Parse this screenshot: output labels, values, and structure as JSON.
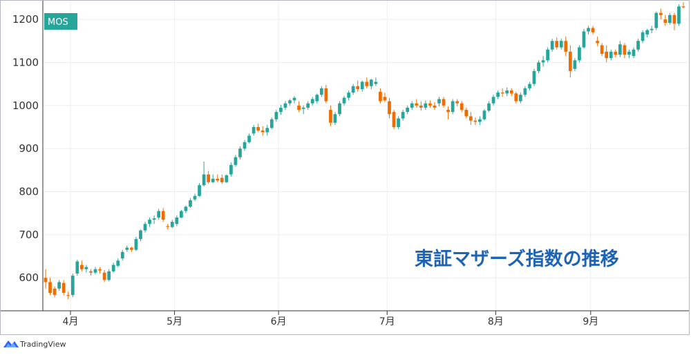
{
  "chart_data": {
    "type": "candlestick",
    "symbol": "MOS",
    "title": "東証マザーズ指数の推移",
    "ylim": [
      525,
      1245
    ],
    "y_ticks": [
      600,
      700,
      800,
      900,
      1000,
      1100,
      1200
    ],
    "x_ticks": [
      "4月",
      "5月",
      "6月",
      "7月",
      "8月",
      "9月"
    ],
    "grid": true,
    "colors": {
      "up": "#26a69a",
      "down": "#ef6c00",
      "symbol_badge": "#26a69a",
      "title": "#1e64b4",
      "brand": "#2962ff"
    },
    "candles": [
      [
        600,
        620,
        575,
        590
      ],
      [
        590,
        600,
        560,
        565
      ],
      [
        575,
        580,
        555,
        560
      ],
      [
        575,
        595,
        570,
        590
      ],
      [
        588,
        595,
        560,
        565
      ],
      [
        560,
        568,
        550,
        558
      ],
      [
        560,
        610,
        555,
        605
      ],
      [
        610,
        642,
        605,
        638
      ],
      [
        630,
        640,
        615,
        620
      ],
      [
        620,
        630,
        612,
        625
      ],
      [
        615,
        620,
        605,
        612
      ],
      [
        612,
        625,
        608,
        620
      ],
      [
        620,
        625,
        610,
        617
      ],
      [
        612,
        618,
        590,
        595
      ],
      [
        595,
        620,
        592,
        615
      ],
      [
        615,
        635,
        612,
        630
      ],
      [
        628,
        645,
        625,
        640
      ],
      [
        645,
        665,
        640,
        660
      ],
      [
        665,
        675,
        660,
        670
      ],
      [
        670,
        672,
        660,
        665
      ],
      [
        665,
        695,
        662,
        690
      ],
      [
        690,
        712,
        685,
        710
      ],
      [
        710,
        730,
        705,
        725
      ],
      [
        725,
        740,
        718,
        735
      ],
      [
        735,
        745,
        725,
        738
      ],
      [
        740,
        760,
        735,
        755
      ],
      [
        755,
        762,
        730,
        735
      ],
      [
        720,
        725,
        712,
        718
      ],
      [
        718,
        735,
        715,
        730
      ],
      [
        725,
        745,
        720,
        740
      ],
      [
        740,
        758,
        738,
        755
      ],
      [
        755,
        768,
        750,
        765
      ],
      [
        765,
        785,
        762,
        780
      ],
      [
        782,
        795,
        778,
        790
      ],
      [
        790,
        820,
        788,
        815
      ],
      [
        815,
        870,
        812,
        840
      ],
      [
        840,
        848,
        818,
        822
      ],
      [
        822,
        840,
        820,
        830
      ],
      [
        830,
        840,
        822,
        826
      ],
      [
        832,
        840,
        818,
        822
      ],
      [
        822,
        840,
        820,
        838
      ],
      [
        840,
        868,
        835,
        862
      ],
      [
        862,
        885,
        858,
        880
      ],
      [
        880,
        905,
        875,
        900
      ],
      [
        900,
        920,
        895,
        915
      ],
      [
        915,
        935,
        912,
        930
      ],
      [
        935,
        955,
        930,
        950
      ],
      [
        950,
        958,
        938,
        942
      ],
      [
        942,
        952,
        930,
        938
      ],
      [
        938,
        955,
        930,
        948
      ],
      [
        948,
        972,
        945,
        968
      ],
      [
        968,
        990,
        962,
        985
      ],
      [
        985,
        1002,
        978,
        995
      ],
      [
        995,
        1010,
        990,
        1005
      ],
      [
        1005,
        1015,
        1000,
        1012
      ],
      [
        1012,
        1022,
        1005,
        1018
      ],
      [
        1000,
        1010,
        985,
        990
      ],
      [
        992,
        1000,
        980,
        995
      ],
      [
        995,
        1010,
        990,
        1005
      ],
      [
        1005,
        1020,
        1000,
        1015
      ],
      [
        1010,
        1028,
        1005,
        1025
      ],
      [
        1025,
        1045,
        1020,
        1040
      ],
      [
        1040,
        1048,
        1005,
        1010
      ],
      [
        990,
        1000,
        952,
        960
      ],
      [
        960,
        985,
        955,
        980
      ],
      [
        980,
        1010,
        975,
        1005
      ],
      [
        1005,
        1022,
        1000,
        1018
      ],
      [
        1018,
        1035,
        1012,
        1030
      ],
      [
        1030,
        1050,
        1025,
        1045
      ],
      [
        1045,
        1058,
        1032,
        1038
      ],
      [
        1038,
        1058,
        1032,
        1055
      ],
      [
        1055,
        1065,
        1040,
        1045
      ],
      [
        1045,
        1062,
        1038,
        1060
      ],
      [
        1050,
        1065,
        1045,
        1055
      ],
      [
        1032,
        1040,
        1005,
        1010
      ],
      [
        1020,
        1030,
        1008,
        1012
      ],
      [
        1010,
        1018,
        970,
        980
      ],
      [
        985,
        990,
        945,
        950
      ],
      [
        950,
        975,
        945,
        970
      ],
      [
        970,
        990,
        965,
        985
      ],
      [
        985,
        1000,
        980,
        995
      ],
      [
        995,
        1010,
        990,
        1005
      ],
      [
        1005,
        1015,
        995,
        1000
      ],
      [
        1000,
        1010,
        988,
        995
      ],
      [
        995,
        1012,
        990,
        1005
      ],
      [
        1005,
        1012,
        995,
        1000
      ],
      [
        1000,
        1008,
        990,
        995
      ],
      [
        1005,
        1020,
        998,
        1015
      ],
      [
        1015,
        1020,
        995,
        1000
      ],
      [
        990,
        998,
        968,
        985
      ],
      [
        985,
        1015,
        980,
        1010
      ],
      [
        1010,
        1015,
        998,
        1005
      ],
      [
        1005,
        1010,
        985,
        990
      ],
      [
        990,
        995,
        970,
        975
      ],
      [
        975,
        985,
        955,
        965
      ],
      [
        965,
        972,
        955,
        962
      ],
      [
        962,
        975,
        955,
        968
      ],
      [
        968,
        992,
        965,
        988
      ],
      [
        988,
        1010,
        985,
        1005
      ],
      [
        1005,
        1025,
        1000,
        1020
      ],
      [
        1020,
        1035,
        1015,
        1030
      ],
      [
        1030,
        1040,
        1020,
        1028
      ],
      [
        1028,
        1042,
        1022,
        1035
      ],
      [
        1035,
        1040,
        1022,
        1028
      ],
      [
        1028,
        1032,
        1005,
        1010
      ],
      [
        1010,
        1030,
        1005,
        1025
      ],
      [
        1025,
        1045,
        1020,
        1040
      ],
      [
        1040,
        1055,
        1035,
        1050
      ],
      [
        1050,
        1085,
        1045,
        1080
      ],
      [
        1080,
        1105,
        1075,
        1100
      ],
      [
        1100,
        1115,
        1090,
        1105
      ],
      [
        1105,
        1135,
        1100,
        1130
      ],
      [
        1130,
        1155,
        1125,
        1150
      ],
      [
        1150,
        1158,
        1130,
        1135
      ],
      [
        1135,
        1155,
        1130,
        1150
      ],
      [
        1150,
        1160,
        1115,
        1125
      ],
      [
        1125,
        1140,
        1065,
        1080
      ],
      [
        1085,
        1110,
        1080,
        1105
      ],
      [
        1105,
        1140,
        1100,
        1135
      ],
      [
        1135,
        1178,
        1132,
        1172
      ],
      [
        1172,
        1185,
        1165,
        1180
      ],
      [
        1180,
        1185,
        1165,
        1170
      ],
      [
        1150,
        1160,
        1138,
        1145
      ],
      [
        1140,
        1145,
        1115,
        1120
      ],
      [
        1125,
        1140,
        1100,
        1110
      ],
      [
        1110,
        1130,
        1105,
        1125
      ],
      [
        1125,
        1130,
        1112,
        1118
      ],
      [
        1118,
        1150,
        1112,
        1142
      ],
      [
        1140,
        1145,
        1110,
        1118
      ],
      [
        1118,
        1130,
        1110,
        1125
      ],
      [
        1115,
        1135,
        1110,
        1130
      ],
      [
        1130,
        1155,
        1125,
        1150
      ],
      [
        1150,
        1175,
        1145,
        1170
      ],
      [
        1165,
        1178,
        1158,
        1175
      ],
      [
        1175,
        1185,
        1168,
        1178
      ],
      [
        1180,
        1218,
        1175,
        1215
      ],
      [
        1215,
        1225,
        1200,
        1210
      ],
      [
        1200,
        1210,
        1185,
        1192
      ],
      [
        1192,
        1215,
        1188,
        1210
      ],
      [
        1210,
        1215,
        1175,
        1190
      ],
      [
        1190,
        1235,
        1185,
        1230
      ],
      [
        1230,
        1240,
        1225,
        1228
      ]
    ]
  },
  "footer": {
    "brand": "TradingView"
  }
}
